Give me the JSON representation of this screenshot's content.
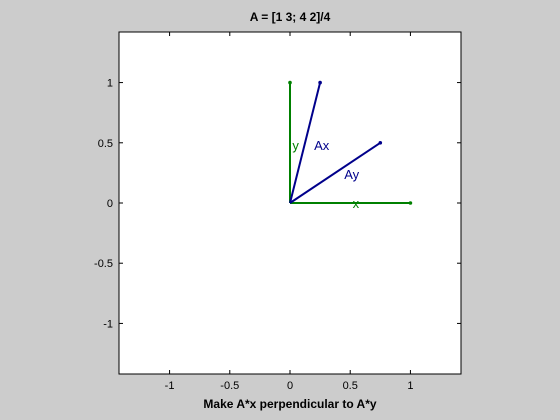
{
  "figure": {
    "background": "#cccccc",
    "axes_background": "#ffffff"
  },
  "chart_data": {
    "type": "line",
    "title": "A = [1 3; 4 2]/4",
    "xlabel": "Make A*x perpendicular to A*y",
    "ylabel": "",
    "xlim": [
      -1.42,
      1.42
    ],
    "ylim": [
      -1.42,
      1.42
    ],
    "x_ticks": [
      -1,
      -0.5,
      0,
      0.5,
      1
    ],
    "x_tick_labels": [
      "-1",
      "-0.5",
      "0",
      "0.5",
      "1"
    ],
    "y_ticks": [
      1,
      0.5,
      0,
      -0.5,
      -1
    ],
    "y_tick_labels": [
      "1",
      "0.5",
      "0",
      "-0.5",
      "-1"
    ],
    "grid": false,
    "legend": "none",
    "series": [
      {
        "name": "x",
        "color": "#008000",
        "points": [
          [
            0,
            0
          ],
          [
            1,
            0
          ]
        ],
        "label_at": [
          0.52,
          0
        ]
      },
      {
        "name": "y",
        "color": "#008000",
        "points": [
          [
            0,
            0
          ],
          [
            0,
            1
          ]
        ],
        "label_at": [
          0.02,
          0.48
        ]
      },
      {
        "name": "Ax",
        "color": "#00008b",
        "points": [
          [
            0,
            0
          ],
          [
            0.25,
            1
          ]
        ],
        "label_at": [
          0.2,
          0.48
        ]
      },
      {
        "name": "Ay",
        "color": "#00008b",
        "points": [
          [
            0,
            0
          ],
          [
            0.75,
            0.5
          ]
        ],
        "label_at": [
          0.45,
          0.24
        ]
      }
    ]
  }
}
